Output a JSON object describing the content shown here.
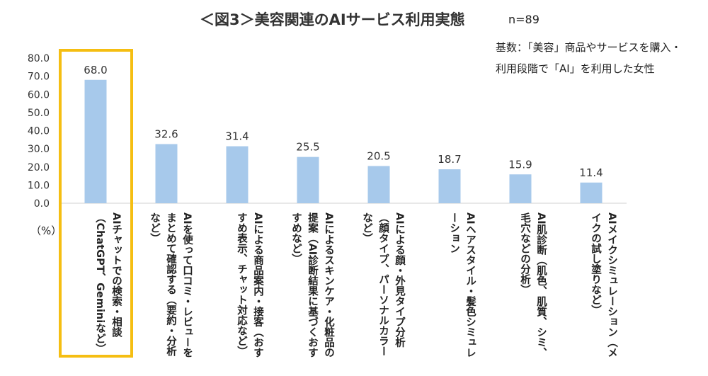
{
  "header": {
    "title": "＜図3＞美容関連のAIサービス利用実態",
    "sample_size": "n=89",
    "basis_lines": [
      "基数：「美容」商品やサービスを購入・",
      "利用段階で「AI」を利用した女性"
    ]
  },
  "unit_label": "（%）",
  "colors": {
    "bar": "#a7c9eb",
    "highlight": "#f5be12"
  },
  "chart_data": {
    "type": "bar",
    "title": "＜図3＞美容関連のAIサービス利用実態",
    "xlabel": "",
    "ylabel": "（%）",
    "ylim": [
      0,
      80
    ],
    "yticks": [
      "80.0",
      "70.0",
      "60.0",
      "50.0",
      "40.0",
      "30.0",
      "20.0",
      "10.0",
      "0.0"
    ],
    "grid": false,
    "categories": [
      "AIチャットでの検索・相談（ChatGPT、Geminiなど）",
      "AIを使って口コミ・レビューをまとめて確認する（要約・分析など）",
      "AIによる商品案内・接客（おすすめ表示、チャット対応など）",
      "AIによるスキンケア・化粧品の提案（AI診断結果に基づくおすすめなど）",
      "AIによる顔・外見タイプ分析（顔タイプ、パーソナルカラーなど）",
      "AIヘアスタイル・髪色シミュレーション",
      "AI肌診断（肌色、肌質、シミ、毛穴などの分析）",
      "AIメイクシミュレーション（メイクの試し塗りなど）"
    ],
    "values": [
      68.0,
      32.6,
      31.4,
      25.5,
      20.5,
      18.7,
      15.9,
      11.4
    ],
    "value_labels": [
      "68.0",
      "32.6",
      "31.4",
      "25.5",
      "20.5",
      "18.7",
      "15.9",
      "11.4"
    ]
  }
}
